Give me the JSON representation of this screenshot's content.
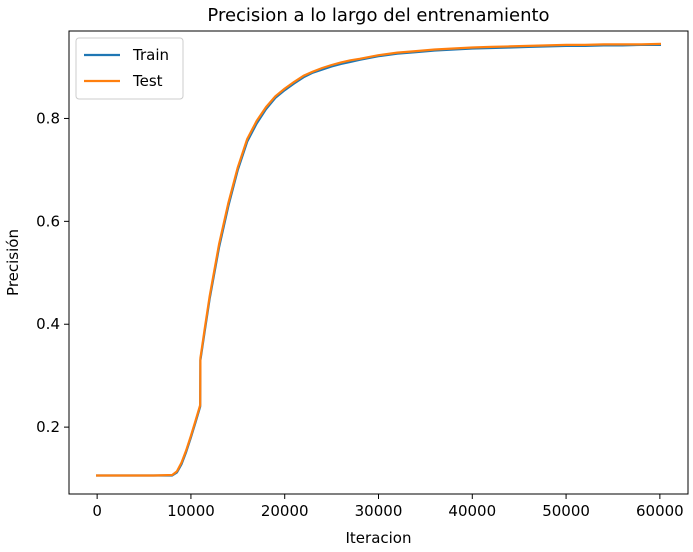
{
  "chart_data": {
    "type": "line",
    "title": "Precision a lo largo del entrenamiento",
    "xlabel": "Iteracion",
    "ylabel": "Precisión",
    "xlim": [
      -3000,
      63000
    ],
    "ylim": [
      0.07,
      0.97
    ],
    "xticks": [
      0,
      10000,
      20000,
      30000,
      40000,
      50000,
      60000
    ],
    "xtick_labels": [
      "0",
      "10000",
      "20000",
      "30000",
      "40000",
      "50000",
      "60000"
    ],
    "yticks": [
      0.2,
      0.4,
      0.6,
      0.8
    ],
    "ytick_labels": [
      "0.2",
      "0.4",
      "0.6",
      "0.8"
    ],
    "grid": false,
    "legend_position": "upper-left",
    "series": [
      {
        "name": "Train",
        "color": "#1f77b4",
        "x": [
          0,
          2000,
          4000,
          6000,
          8000,
          8500,
          9000,
          9500,
          10000,
          10500,
          10990,
          11010,
          11500,
          12000,
          13000,
          14000,
          15000,
          16000,
          17000,
          18000,
          19000,
          20000,
          21000,
          22000,
          23000,
          24000,
          25000,
          26000,
          27000,
          28000,
          30000,
          32000,
          34000,
          36000,
          38000,
          40000,
          42000,
          44000,
          46000,
          48000,
          50000,
          52000,
          54000,
          56000,
          58000,
          60000
        ],
        "y": [
          0.106,
          0.106,
          0.106,
          0.106,
          0.106,
          0.112,
          0.128,
          0.152,
          0.18,
          0.21,
          0.24,
          0.33,
          0.39,
          0.45,
          0.55,
          0.63,
          0.7,
          0.755,
          0.79,
          0.818,
          0.84,
          0.855,
          0.868,
          0.88,
          0.889,
          0.895,
          0.901,
          0.906,
          0.91,
          0.914,
          0.921,
          0.926,
          0.929,
          0.932,
          0.934,
          0.936,
          0.937,
          0.938,
          0.939,
          0.94,
          0.941,
          0.941,
          0.942,
          0.942,
          0.943,
          0.943
        ]
      },
      {
        "name": "Test",
        "color": "#ff7f0e",
        "x": [
          0,
          2000,
          4000,
          6000,
          8000,
          8500,
          9000,
          9500,
          10000,
          10500,
          10990,
          11010,
          11500,
          12000,
          13000,
          14000,
          15000,
          16000,
          17000,
          18000,
          19000,
          20000,
          21000,
          22000,
          23000,
          24000,
          25000,
          26000,
          27000,
          28000,
          30000,
          32000,
          34000,
          36000,
          38000,
          40000,
          42000,
          44000,
          46000,
          48000,
          50000,
          52000,
          54000,
          56000,
          58000,
          60000
        ],
        "y": [
          0.106,
          0.106,
          0.106,
          0.106,
          0.107,
          0.114,
          0.131,
          0.155,
          0.183,
          0.213,
          0.243,
          0.334,
          0.395,
          0.455,
          0.556,
          0.636,
          0.705,
          0.76,
          0.795,
          0.822,
          0.843,
          0.858,
          0.871,
          0.883,
          0.891,
          0.898,
          0.904,
          0.909,
          0.913,
          0.916,
          0.923,
          0.928,
          0.931,
          0.934,
          0.936,
          0.938,
          0.939,
          0.94,
          0.941,
          0.942,
          0.943,
          0.943,
          0.944,
          0.944,
          0.944,
          0.945
        ]
      }
    ]
  }
}
